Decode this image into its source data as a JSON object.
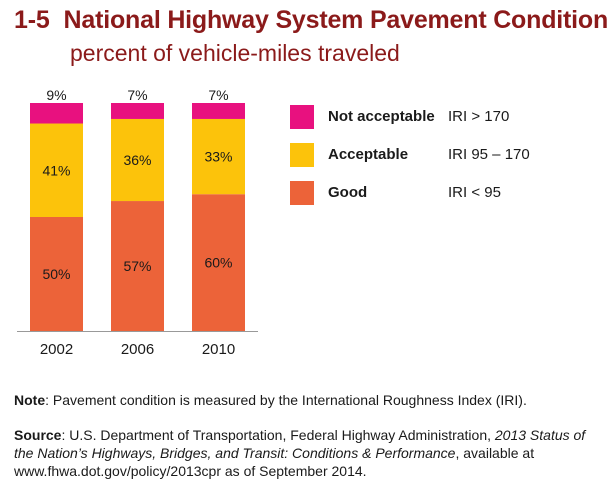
{
  "header": {
    "number": "1-5",
    "title": "National Highway System Pavement Condition",
    "subtitle": "percent of vehicle-miles traveled"
  },
  "colors": {
    "title": "#8b1a1a",
    "not_acceptable": "#e8117f",
    "acceptable": "#fcc30b",
    "good": "#ec6339",
    "axis": "#999999"
  },
  "legend": [
    {
      "label": "Not acceptable",
      "range": "IRI > 170",
      "color": "#e8117f"
    },
    {
      "label": "Acceptable",
      "range": "IRI 95 – 170",
      "color": "#fcc30b"
    },
    {
      "label": "Good",
      "range": "IRI < 95",
      "color": "#ec6339"
    }
  ],
  "chart_data": {
    "type": "bar",
    "stacked": true,
    "title": "National Highway System Pavement Condition",
    "subtitle": "percent of vehicle-miles traveled",
    "categories": [
      "2002",
      "2006",
      "2010"
    ],
    "series": [
      {
        "name": "Good",
        "range": "IRI < 95",
        "color": "#ec6339",
        "values": [
          50,
          57,
          60
        ],
        "labels": [
          "50%",
          "57%",
          "60%"
        ]
      },
      {
        "name": "Acceptable",
        "range": "IRI 95 – 170",
        "color": "#fcc30b",
        "values": [
          41,
          36,
          33
        ],
        "labels": [
          "41%",
          "36%",
          "33%"
        ]
      },
      {
        "name": "Not acceptable",
        "range": "IRI > 170",
        "color": "#e8117f",
        "values": [
          9,
          7,
          7
        ],
        "labels": [
          "9%",
          "7%",
          "7%"
        ]
      }
    ],
    "ylim": [
      0,
      100
    ],
    "xlabel": "",
    "ylabel": "",
    "grid": false,
    "legend_position": "right"
  },
  "note": {
    "label": "Note",
    "text": ": Pavement condition is measured by the International Roughness Index (IRI)."
  },
  "source": {
    "label": "Source",
    "text_before": ": U.S. Department of Transportation, Federal Highway Administration, ",
    "italic": "2013 Status of the Nation’s Highways, Bridges, and Transit: Conditions & Performance",
    "text_after": ", available at www.fhwa.dot.gov/policy/2013cpr as of September 2014."
  }
}
